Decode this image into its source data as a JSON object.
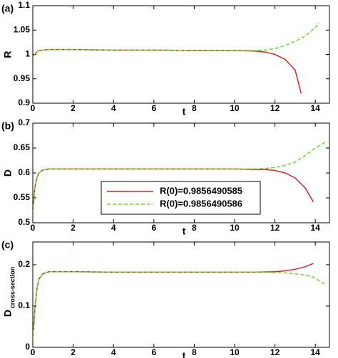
{
  "chart_data": [
    {
      "type": "line",
      "panel_label": "(a)",
      "ylabel": "R",
      "xlabel": "t",
      "x": [
        0,
        0.1,
        0.2,
        0.3,
        0.5,
        0.8,
        1,
        2,
        4,
        6,
        8,
        10,
        11,
        11.5,
        12,
        12.5,
        13,
        13.3,
        13.5,
        14,
        14.2
      ],
      "xlim": [
        0,
        14.7
      ],
      "xticks": [
        0,
        2,
        4,
        6,
        8,
        10,
        12,
        14
      ],
      "ylim": [
        0.9,
        1.1
      ],
      "yticks": [
        0.9,
        0.95,
        1,
        1.05,
        1.1
      ],
      "series": [
        {
          "color": "#e02020",
          "dash": false,
          "values": [
            0.995,
            1.0,
            1.005,
            1.008,
            1.009,
            1.01,
            1.01,
            1.01,
            1.009,
            1.009,
            1.008,
            1.008,
            1.007,
            1.005,
            1.0,
            0.99,
            0.968,
            0.92,
            null,
            null,
            null
          ]
        },
        {
          "color": "#66dd22",
          "dash": true,
          "values": [
            0.995,
            1.0,
            1.005,
            1.008,
            1.009,
            1.01,
            1.01,
            1.01,
            1.009,
            1.009,
            1.008,
            1.008,
            1.008,
            1.009,
            1.012,
            1.018,
            1.027,
            1.033,
            1.038,
            1.055,
            1.065
          ]
        }
      ]
    },
    {
      "type": "line",
      "panel_label": "(b)",
      "ylabel": "D",
      "xlabel": "t",
      "x": [
        0,
        0.1,
        0.2,
        0.3,
        0.5,
        0.8,
        1,
        2,
        4,
        6,
        8,
        10,
        11,
        11.5,
        12,
        12.5,
        13,
        13.5,
        13.9,
        14,
        14.5
      ],
      "xlim": [
        0,
        14.7
      ],
      "xticks": [
        0,
        2,
        4,
        6,
        8,
        10,
        12,
        14
      ],
      "ylim": [
        0.5,
        0.7
      ],
      "yticks": [
        0.5,
        0.55,
        0.6,
        0.65,
        0.7
      ],
      "series": [
        {
          "name": "R(0)=0.9856490585",
          "color": "#e02020",
          "dash": false,
          "values": [
            0.52,
            0.57,
            0.59,
            0.6,
            0.606,
            0.608,
            0.608,
            0.608,
            0.608,
            0.608,
            0.608,
            0.608,
            0.607,
            0.607,
            0.605,
            0.6,
            0.59,
            0.57,
            0.542,
            null,
            null
          ]
        },
        {
          "name": "R(0)=0.9856490586",
          "color": "#66dd22",
          "dash": true,
          "values": [
            0.52,
            0.57,
            0.59,
            0.6,
            0.606,
            0.608,
            0.608,
            0.608,
            0.608,
            0.608,
            0.608,
            0.608,
            0.608,
            0.609,
            0.611,
            0.615,
            0.622,
            0.635,
            0.647,
            0.65,
            0.662
          ]
        }
      ]
    },
    {
      "type": "line",
      "panel_label": "(c)",
      "ylabel": "D",
      "ylabel_subscript": "cross-section",
      "xlabel": "t",
      "x": [
        0,
        0.1,
        0.2,
        0.3,
        0.5,
        0.8,
        1,
        2,
        4,
        6,
        8,
        10,
        11,
        12,
        12.5,
        13,
        13.5,
        13.9,
        14,
        14.5
      ],
      "xlim": [
        0,
        14.7
      ],
      "xticks": [
        0,
        2,
        4,
        6,
        8,
        10,
        12,
        14
      ],
      "ylim": [
        0,
        0.255
      ],
      "yticks": [
        0,
        0.1,
        0.2
      ],
      "series": [
        {
          "color": "#e02020",
          "dash": false,
          "values": [
            0.02,
            0.09,
            0.14,
            0.165,
            0.178,
            0.183,
            0.183,
            0.183,
            0.182,
            0.182,
            0.182,
            0.182,
            0.182,
            0.183,
            0.185,
            0.189,
            0.195,
            0.203,
            null,
            null
          ]
        },
        {
          "color": "#66dd22",
          "dash": true,
          "values": [
            0.02,
            0.09,
            0.14,
            0.165,
            0.178,
            0.183,
            0.183,
            0.183,
            0.182,
            0.182,
            0.182,
            0.182,
            0.182,
            0.181,
            0.18,
            0.178,
            0.175,
            0.17,
            0.167,
            0.152
          ]
        }
      ]
    }
  ]
}
